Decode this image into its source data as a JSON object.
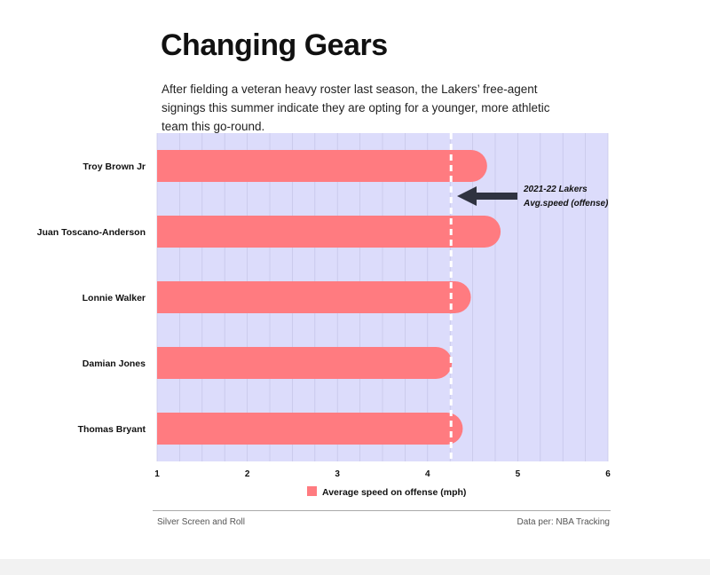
{
  "title": "Changing Gears",
  "subtitle": "After fielding a veteran heavy roster last season, the Lakers’ free-agent signings this summer indicate they are opting for a younger, more athletic team this go-round.",
  "footer": {
    "source": "Silver Screen and Roll",
    "data_credit": "Data per: NBA Tracking"
  },
  "chart_data": {
    "type": "bar",
    "orientation": "horizontal",
    "categories": [
      "Troy Brown Jr",
      "Juan Toscano-Anderson",
      "Lonnie Walker",
      "Damian Jones",
      "Thomas Bryant"
    ],
    "values": [
      4.66,
      4.81,
      4.48,
      4.27,
      4.39
    ],
    "series_name": "Average speed on offense (mph)",
    "xlim": [
      1,
      6
    ],
    "xticks": [
      "1",
      "2",
      "3",
      "4",
      "5",
      "6"
    ],
    "grid": true,
    "legend": "bottom-center",
    "reference_line": {
      "value": 4.26,
      "label_line1": "2021-22 Lakers",
      "label_line2": "Avg.speed (offense)"
    },
    "colors": {
      "bar": "#ff7b80",
      "plot_bg": "#dcdcfb",
      "grid": "#c4c4e6",
      "arrow": "#2f3340"
    }
  }
}
